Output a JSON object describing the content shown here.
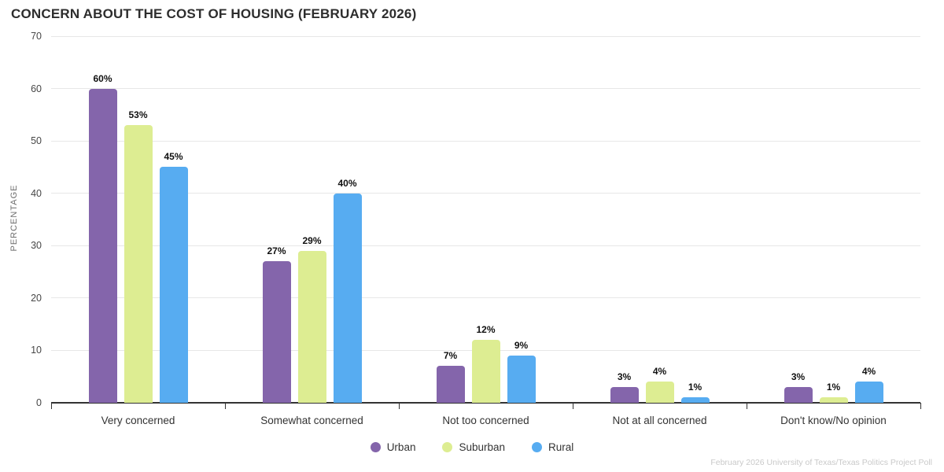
{
  "title": "CONCERN ABOUT THE COST OF HOUSING (FEBRUARY 2026)",
  "footer": "February 2026 University of Texas/Texas Politics Project Poll",
  "chart_data": {
    "type": "bar",
    "title": "CONCERN ABOUT THE COST OF HOUSING (FEBRUARY 2026)",
    "categories": [
      "Very concerned",
      "Somewhat concerned",
      "Not too concerned",
      "Not at all concerned",
      "Don't know/No opinion"
    ],
    "series": [
      {
        "name": "Urban",
        "color": "#8465ab",
        "values": [
          60,
          27,
          7,
          3,
          3
        ]
      },
      {
        "name": "Suburban",
        "color": "#dded92",
        "values": [
          53,
          29,
          12,
          4,
          1
        ]
      },
      {
        "name": "Rural",
        "color": "#57acf1",
        "values": [
          45,
          40,
          9,
          1,
          4
        ]
      }
    ],
    "xlabel": "",
    "ylabel": "PERCENTAGE",
    "ylim": [
      0,
      70
    ],
    "ytick_step": 10,
    "value_suffix": "%",
    "grid": true,
    "legend_position": "bottom",
    "source_note": "February 2026 University of Texas/Texas Politics Project Poll"
  }
}
